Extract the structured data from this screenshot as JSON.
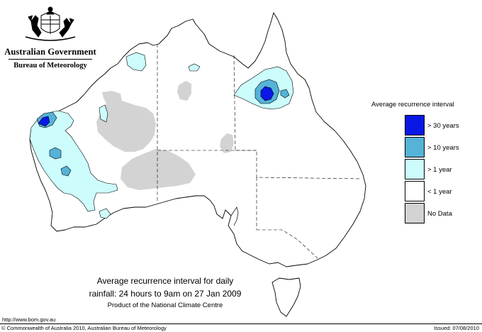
{
  "header": {
    "government": "Australian Government",
    "bureau": "Bureau of Meteorology"
  },
  "legend": {
    "title": "Average recurrence interval",
    "items": [
      {
        "label": "> 30 years",
        "color": "#0a18e6"
      },
      {
        "label": "> 10 years",
        "color": "#55b3d8"
      },
      {
        "label": "> 1 year",
        "color": "#ccfcfc"
      },
      {
        "label": "< 1 year",
        "color": "#ffffff"
      },
      {
        "label": "No Data",
        "color": "#d3d3d3"
      }
    ]
  },
  "caption": {
    "line1": "Average recurrence interval for daily",
    "line2": "rainfall: 24 hours to 9am on 27 Jan 2009",
    "product": "Product of the National Climate Centre"
  },
  "footer": {
    "url": "http://www.bom.gov.au",
    "copyright": "© Commonwealth of Australia 2010, Australian Bureau of Meteorology",
    "issued": "Issued: 07/08/2010"
  },
  "map": {
    "land_color": "#ffffff",
    "no_data_color": "#d3d3d3",
    "over_1_year_color": "#ccfcfc",
    "over_10_years_color": "#55b3d8",
    "over_30_years_color": "#0a18e6"
  }
}
